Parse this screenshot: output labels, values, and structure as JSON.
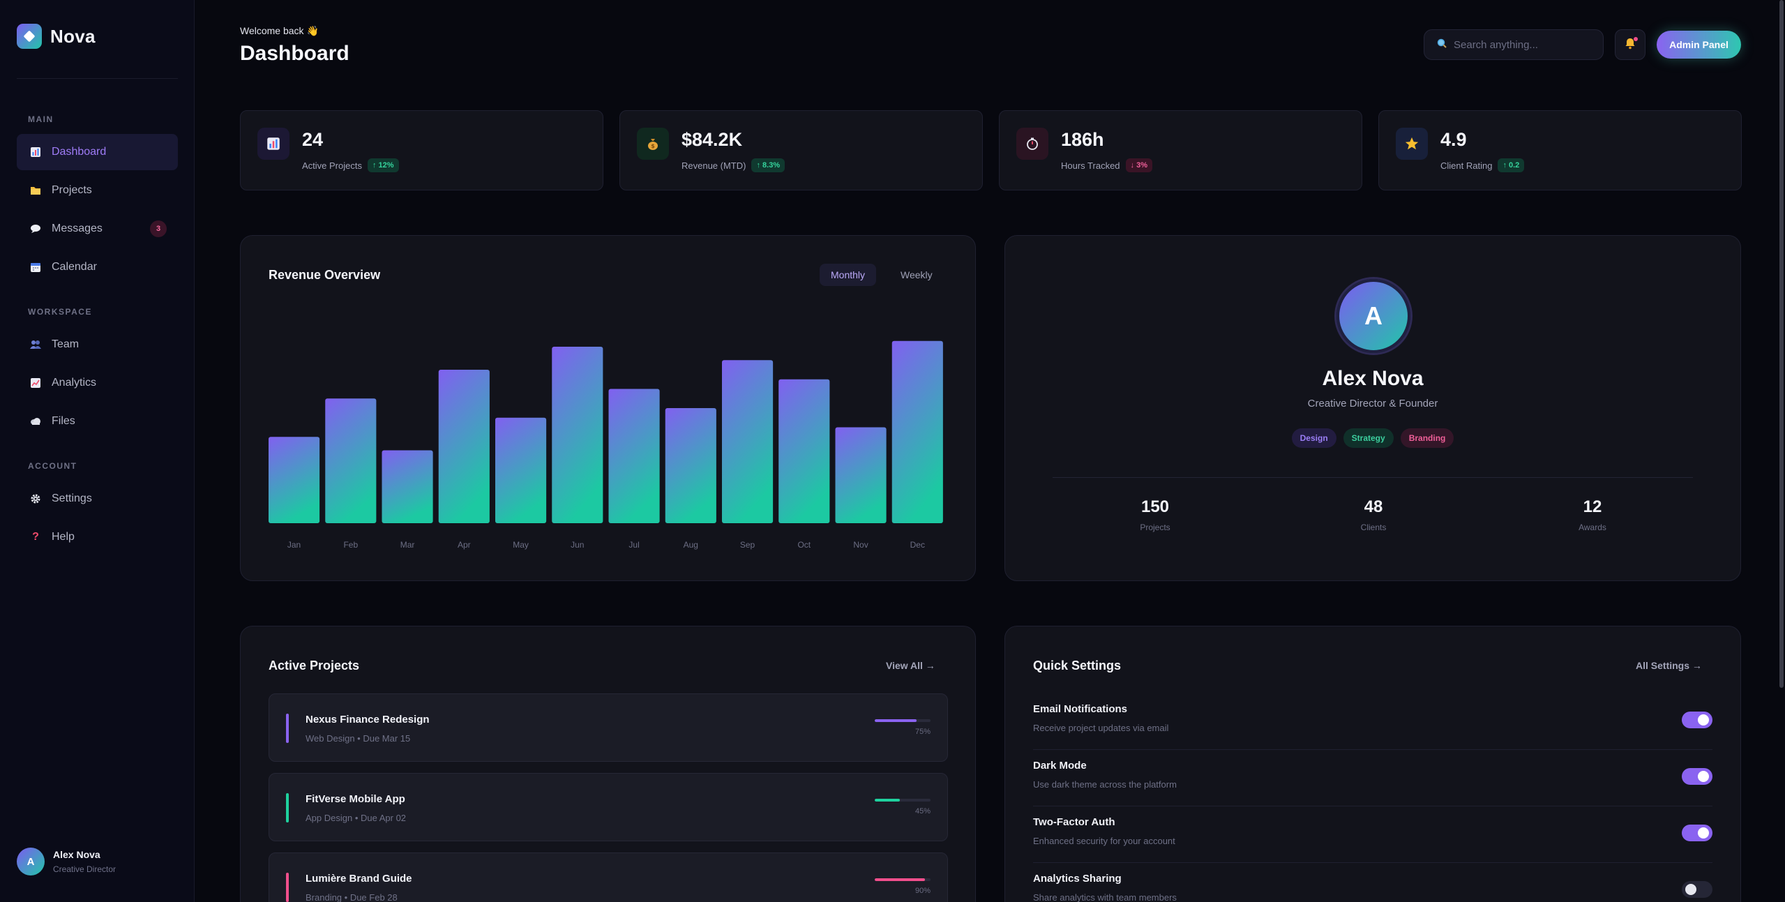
{
  "sidebar": {
    "brand": "Nova",
    "sections": [
      {
        "title": "MAIN",
        "items": [
          {
            "label": "Dashboard",
            "icon": "chart-icon",
            "active": true
          },
          {
            "label": "Projects",
            "icon": "folder-icon"
          },
          {
            "label": "Messages",
            "icon": "chat-icon",
            "badge": "3"
          },
          {
            "label": "Calendar",
            "icon": "calendar-icon"
          }
        ]
      },
      {
        "title": "WORKSPACE",
        "items": [
          {
            "label": "Team",
            "icon": "team-icon"
          },
          {
            "label": "Analytics",
            "icon": "trend-icon"
          },
          {
            "label": "Files",
            "icon": "cloud-icon"
          }
        ]
      },
      {
        "title": "ACCOUNT",
        "items": [
          {
            "label": "Settings",
            "icon": "gear-icon"
          },
          {
            "label": "Help",
            "icon": "help-icon"
          }
        ]
      }
    ],
    "user": {
      "initial": "A",
      "name": "Alex Nova",
      "role": "Creative Director"
    }
  },
  "header": {
    "welcome": "Welcome back 👋",
    "title": "Dashboard",
    "search_placeholder": "Search anything...",
    "admin_button": "Admin Panel"
  },
  "stats": [
    {
      "value": "24",
      "label": "Active Projects",
      "delta": "↑ 12%",
      "trend": "up",
      "icon": "chart-icon"
    },
    {
      "value": "$84.2K",
      "label": "Revenue (MTD)",
      "delta": "↑ 8.3%",
      "trend": "up",
      "icon": "money-bag-icon"
    },
    {
      "value": "186h",
      "label": "Hours Tracked",
      "delta": "↓ 3%",
      "trend": "down",
      "icon": "stopwatch-icon"
    },
    {
      "value": "4.9",
      "label": "Client Rating",
      "delta": "↑ 0.2",
      "trend": "up",
      "icon": "star-icon"
    }
  ],
  "revenue": {
    "title": "Revenue Overview",
    "tabs": [
      "Monthly",
      "Weekly"
    ],
    "active_tab": "Monthly"
  },
  "chart_data": {
    "type": "bar",
    "title": "Revenue Overview",
    "categories": [
      "Jan",
      "Feb",
      "Mar",
      "Apr",
      "May",
      "Jun",
      "Jul",
      "Aug",
      "Sep",
      "Oct",
      "Nov",
      "Dec"
    ],
    "values": [
      45,
      65,
      38,
      80,
      55,
      92,
      70,
      60,
      85,
      75,
      50,
      95
    ],
    "ylim": [
      0,
      100
    ],
    "grid": false,
    "colors": {
      "top": "#8160f0",
      "bottom": "#1cc9a2"
    }
  },
  "profile": {
    "initial": "A",
    "name": "Alex Nova",
    "role": "Creative Director & Founder",
    "tags": [
      "Design",
      "Strategy",
      "Branding"
    ],
    "stats": [
      {
        "value": "150",
        "label": "Projects"
      },
      {
        "value": "48",
        "label": "Clients"
      },
      {
        "value": "12",
        "label": "Awards"
      }
    ]
  },
  "projects": {
    "title": "Active Projects",
    "view_all": "View All →",
    "items": [
      {
        "name": "Nexus Finance Redesign",
        "meta": "Web Design • Due Mar 15",
        "progress": 75,
        "progress_label": "75%",
        "color": "#8a63f0"
      },
      {
        "name": "FitVerse Mobile App",
        "meta": "App Design • Due Apr 02",
        "progress": 45,
        "progress_label": "45%",
        "color": "#1fd19e"
      },
      {
        "name": "Lumière Brand Guide",
        "meta": "Branding • Due Feb 28",
        "progress": 90,
        "progress_label": "90%",
        "color": "#f04f8c"
      }
    ]
  },
  "settings": {
    "title": "Quick Settings",
    "all_link": "All Settings →",
    "items": [
      {
        "name": "Email Notifications",
        "desc": "Receive project updates via email",
        "on": true
      },
      {
        "name": "Dark Mode",
        "desc": "Use dark theme across the platform",
        "on": true
      },
      {
        "name": "Two-Factor Auth",
        "desc": "Enhanced security for your account",
        "on": true
      },
      {
        "name": "Analytics Sharing",
        "desc": "Share analytics with team members",
        "on": false
      }
    ]
  },
  "colors": {
    "accent": "#8a63f0",
    "teal": "#1fd19e",
    "pink": "#f04f8c",
    "background": "#07080f",
    "card": "#12131b"
  }
}
